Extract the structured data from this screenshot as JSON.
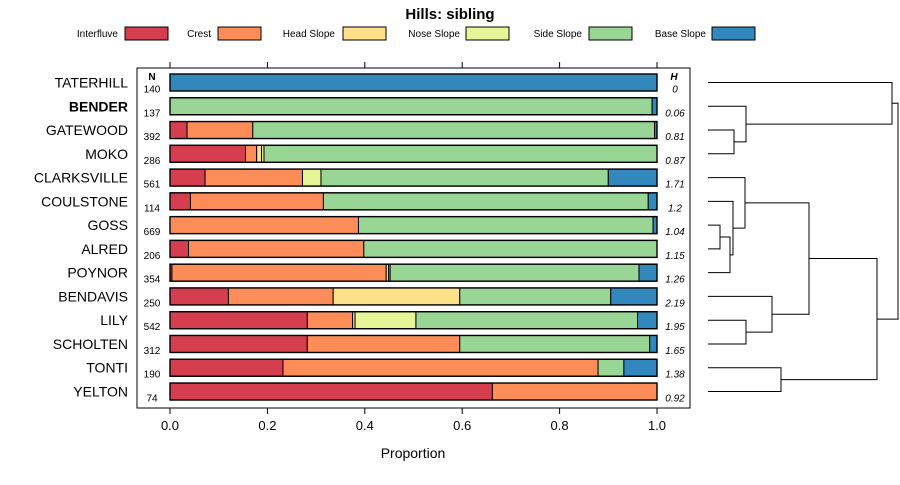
{
  "chart_data": {
    "type": "bar",
    "orientation": "horizontal",
    "stacked": true,
    "title": "Hills: sibling",
    "xlabel": "Proportion",
    "ylabel": "",
    "xlim": [
      0,
      1
    ],
    "xticks": [
      "0.0",
      "0.2",
      "0.4",
      "0.6",
      "0.8",
      "1.0"
    ],
    "grid": false,
    "legend_position": "top",
    "n_header": "N",
    "h_header": "H",
    "highlight_category": "BENDER",
    "categories": [
      "TATERHILL",
      "BENDER",
      "GATEWOOD",
      "MOKO",
      "CLARKSVILLE",
      "COULSTONE",
      "GOSS",
      "ALRED",
      "POYNOR",
      "BENDAVIS",
      "LILY",
      "SCHOLTEN",
      "TONTI",
      "YELTON"
    ],
    "n_values": [
      "140",
      "137",
      "392",
      "286",
      "561",
      "114",
      "669",
      "206",
      "354",
      "250",
      "542",
      "312",
      "190",
      "74"
    ],
    "h_values": [
      "0",
      "0.06",
      "0.81",
      "0.87",
      "1.71",
      "1.2",
      "1.04",
      "1.15",
      "1.26",
      "2.19",
      "1.95",
      "1.65",
      "1.38",
      "0.92"
    ],
    "series": [
      {
        "name": "Interfluve",
        "color": "#D53E4F",
        "values": [
          0,
          0,
          0.035,
          0.155,
          0.072,
          0.042,
          0,
          0.038,
          0.004,
          0.12,
          0.282,
          0.282,
          0.232,
          0.662
        ]
      },
      {
        "name": "Crest",
        "color": "#FC8D59",
        "values": [
          0,
          0,
          0.135,
          0.023,
          0.2,
          0.273,
          0.387,
          0.36,
          0.44,
          0.215,
          0.093,
          0.313,
          0.647,
          0.338
        ]
      },
      {
        "name": "Head Slope",
        "color": "#FEE08B",
        "values": [
          0,
          0,
          0,
          0.01,
          0,
          0,
          0,
          0,
          0.005,
          0.26,
          0.005,
          0,
          0,
          0
        ]
      },
      {
        "name": "Nose Slope",
        "color": "#E6F598",
        "values": [
          0,
          0,
          0,
          0.005,
          0.038,
          0,
          0,
          0,
          0.003,
          0,
          0.125,
          0,
          0,
          0
        ]
      },
      {
        "name": "Side Slope",
        "color": "#99D594",
        "values": [
          0,
          0.99,
          0.825,
          0.807,
          0.59,
          0.667,
          0.605,
          0.602,
          0.511,
          0.31,
          0.455,
          0.39,
          0.053,
          0
        ]
      },
      {
        "name": "Base Slope",
        "color": "#3288BD",
        "values": [
          1,
          0.01,
          0.005,
          0,
          0.1,
          0.018,
          0.008,
          0,
          0.037,
          0.095,
          0.04,
          0.015,
          0.068,
          0
        ]
      }
    ],
    "dendrogram_merge_order": [
      "MOKO+GATEWOOD",
      "BENDER+(MOKO+GATEWOOD)",
      "TATERHILL+(BENDER+(MOKO+GATEWOOD))",
      "GOSS+ALRED",
      "(GOSS+ALRED)+POYNOR",
      "COULSTONE+((GOSS+ALRED)+POYNOR)",
      "CLARKSVILLE+(COULSTONE+((GOSS+ALRED)+POYNOR))",
      "LILY+SCHOLTEN",
      "BENDAVIS+(LILY+SCHOLTEN)",
      "(CLARKSVILLE...)+(BENDAVIS...)",
      "TONTI+YELTON",
      "TONTI+YELTON joined to rest",
      "root"
    ]
  }
}
